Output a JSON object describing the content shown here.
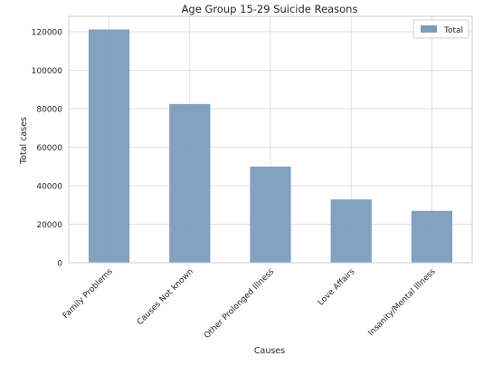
{
  "chart_data": {
    "type": "bar",
    "title": "Age Group 15-29 Suicide Reasons",
    "xlabel": "Causes",
    "ylabel": "Total cases",
    "categories": [
      "Family Problems",
      "Causes Not known",
      "Other Prolonged Illness",
      "Love Affairs",
      "Insanity/Mental Illness"
    ],
    "series": [
      {
        "name": "Total",
        "values": [
          121000,
          82300,
          49800,
          32700,
          26800
        ]
      }
    ],
    "ylim": [
      0,
      128000
    ],
    "yticks": [
      0,
      20000,
      40000,
      60000,
      80000,
      100000,
      120000
    ],
    "ytick_labels": [
      "0",
      "20000",
      "40000",
      "60000",
      "80000",
      "100000",
      "120000"
    ],
    "grid": true,
    "legend_position": "top-right"
  },
  "colors": {
    "bar": "#7b9dbd",
    "bar_edge": "#6f8fae",
    "grid": "#d9d9d9",
    "axes": "#cccccc"
  }
}
